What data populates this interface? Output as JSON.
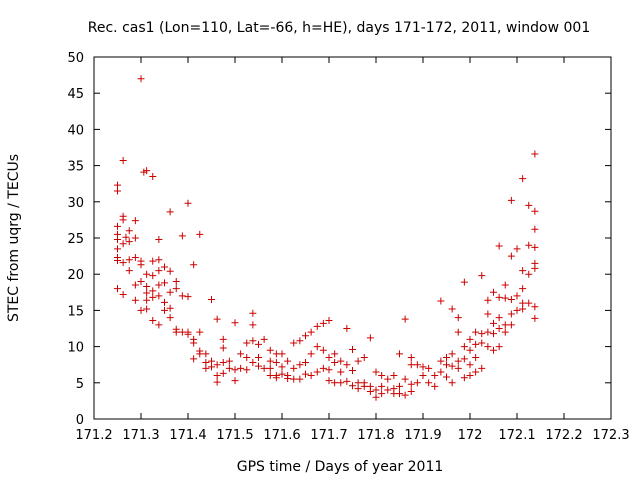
{
  "chart_data": {
    "type": "scatter",
    "title": "Rec. cas1 (Lon=110, Lat=-66, h=HE), days 171-172, 2011, window 001",
    "xlabel": "GPS time / Days of year 2011",
    "ylabel": "STEC from uqrg / TECUs",
    "xlim": [
      171.2,
      172.3
    ],
    "ylim": [
      0,
      50
    ],
    "xticks": [
      "171.2",
      "171.3",
      "171.4",
      "171.5",
      "171.6",
      "171.7",
      "171.8",
      "171.9",
      "172",
      "172.1",
      "172.2",
      "172.3"
    ],
    "yticks": [
      "0",
      "5",
      "10",
      "15",
      "20",
      "25",
      "30",
      "35",
      "40",
      "45",
      "50"
    ],
    "grid": false,
    "legend": "none",
    "marker": "+",
    "color": "#cc0000",
    "series": [
      {
        "points": [
          [
            171.25,
            32.3
          ],
          [
            171.25,
            31.5
          ],
          [
            171.25,
            26.6
          ],
          [
            171.25,
            25.5
          ],
          [
            171.25,
            24.8
          ],
          [
            171.25,
            23.5
          ],
          [
            171.25,
            22.3
          ],
          [
            171.25,
            21.9
          ],
          [
            171.25,
            18.0
          ],
          [
            171.262,
            35.7
          ],
          [
            171.262,
            28.0
          ],
          [
            171.262,
            27.5
          ],
          [
            171.262,
            24.2
          ],
          [
            171.262,
            21.6
          ],
          [
            171.262,
            17.2
          ],
          [
            171.268,
            25.1
          ],
          [
            171.275,
            26.0
          ],
          [
            171.275,
            24.5
          ],
          [
            171.275,
            22.0
          ],
          [
            171.275,
            20.5
          ],
          [
            171.288,
            27.4
          ],
          [
            171.288,
            25.0
          ],
          [
            171.288,
            22.3
          ],
          [
            171.288,
            18.5
          ],
          [
            171.288,
            16.4
          ],
          [
            171.3,
            47.0
          ],
          [
            171.3,
            21.8
          ],
          [
            171.3,
            21.3
          ],
          [
            171.3,
            19.0
          ],
          [
            171.3,
            15.0
          ],
          [
            171.306,
            34.1
          ],
          [
            171.312,
            34.3
          ],
          [
            171.312,
            20.0
          ],
          [
            171.312,
            18.3
          ],
          [
            171.312,
            17.4
          ],
          [
            171.312,
            16.4
          ],
          [
            171.312,
            15.2
          ],
          [
            171.325,
            33.5
          ],
          [
            171.325,
            21.8
          ],
          [
            171.325,
            19.8
          ],
          [
            171.325,
            17.7
          ],
          [
            171.325,
            16.8
          ],
          [
            171.325,
            13.6
          ],
          [
            171.338,
            24.8
          ],
          [
            171.338,
            22.0
          ],
          [
            171.338,
            20.5
          ],
          [
            171.338,
            18.5
          ],
          [
            171.338,
            17.0
          ],
          [
            171.338,
            13.0
          ],
          [
            171.35,
            21.0
          ],
          [
            171.35,
            18.8
          ],
          [
            171.35,
            16.1
          ],
          [
            171.35,
            15.0
          ],
          [
            171.362,
            28.6
          ],
          [
            171.362,
            20.4
          ],
          [
            171.362,
            17.5
          ],
          [
            171.362,
            15.3
          ],
          [
            171.362,
            14.0
          ],
          [
            171.375,
            19.0
          ],
          [
            171.375,
            18.0
          ],
          [
            171.375,
            12.4
          ],
          [
            171.375,
            12.0
          ],
          [
            171.388,
            25.3
          ],
          [
            171.388,
            17.0
          ],
          [
            171.388,
            12.0
          ],
          [
            171.4,
            29.8
          ],
          [
            171.4,
            16.9
          ],
          [
            171.4,
            12.0
          ],
          [
            171.4,
            11.7
          ],
          [
            171.412,
            21.3
          ],
          [
            171.412,
            11.0
          ],
          [
            171.412,
            10.5
          ],
          [
            171.412,
            8.3
          ],
          [
            171.425,
            25.5
          ],
          [
            171.425,
            12.0
          ],
          [
            171.425,
            9.4
          ],
          [
            171.425,
            9.0
          ],
          [
            171.438,
            9.0
          ],
          [
            171.438,
            7.8
          ],
          [
            171.438,
            7.0
          ],
          [
            171.45,
            16.5
          ],
          [
            171.45,
            8.0
          ],
          [
            171.45,
            7.2
          ],
          [
            171.462,
            13.8
          ],
          [
            171.462,
            7.5
          ],
          [
            171.462,
            6.0
          ],
          [
            171.462,
            5.1
          ],
          [
            171.475,
            11.0
          ],
          [
            171.475,
            9.8
          ],
          [
            171.475,
            7.8
          ],
          [
            171.475,
            6.3
          ],
          [
            171.488,
            8.0
          ],
          [
            171.488,
            7.0
          ],
          [
            171.5,
            13.3
          ],
          [
            171.5,
            6.8
          ],
          [
            171.5,
            5.3
          ],
          [
            171.512,
            9.0
          ],
          [
            171.512,
            7.0
          ],
          [
            171.525,
            10.5
          ],
          [
            171.525,
            8.5
          ],
          [
            171.525,
            6.8
          ],
          [
            171.538,
            14.6
          ],
          [
            171.538,
            13.0
          ],
          [
            171.538,
            10.8
          ],
          [
            171.538,
            7.8
          ],
          [
            171.55,
            10.3
          ],
          [
            171.55,
            8.5
          ],
          [
            171.55,
            7.3
          ],
          [
            171.562,
            11.0
          ],
          [
            171.562,
            7.0
          ],
          [
            171.575,
            9.5
          ],
          [
            171.575,
            8.0
          ],
          [
            171.575,
            7.0
          ],
          [
            171.575,
            6.0
          ],
          [
            171.588,
            9.0
          ],
          [
            171.588,
            7.8
          ],
          [
            171.588,
            6.0
          ],
          [
            171.588,
            5.7
          ],
          [
            171.6,
            9.0
          ],
          [
            171.6,
            7.2
          ],
          [
            171.6,
            6.2
          ],
          [
            171.612,
            8.0
          ],
          [
            171.612,
            6.0
          ],
          [
            171.612,
            5.6
          ],
          [
            171.625,
            10.5
          ],
          [
            171.625,
            7.0
          ],
          [
            171.625,
            5.5
          ],
          [
            171.638,
            10.8
          ],
          [
            171.638,
            7.5
          ],
          [
            171.638,
            5.5
          ],
          [
            171.65,
            11.5
          ],
          [
            171.65,
            7.8
          ],
          [
            171.65,
            6.2
          ],
          [
            171.662,
            12.0
          ],
          [
            171.662,
            9.0
          ],
          [
            171.662,
            6.0
          ],
          [
            171.675,
            12.8
          ],
          [
            171.675,
            10.0
          ],
          [
            171.675,
            6.5
          ],
          [
            171.688,
            13.2
          ],
          [
            171.688,
            9.5
          ],
          [
            171.688,
            7.0
          ],
          [
            171.7,
            13.6
          ],
          [
            171.7,
            8.5
          ],
          [
            171.7,
            6.8
          ],
          [
            171.7,
            5.3
          ],
          [
            171.712,
            9.0
          ],
          [
            171.712,
            7.8
          ],
          [
            171.712,
            5.0
          ],
          [
            171.725,
            8.0
          ],
          [
            171.725,
            6.5
          ],
          [
            171.725,
            5.0
          ],
          [
            171.738,
            12.5
          ],
          [
            171.738,
            7.5
          ],
          [
            171.738,
            5.2
          ],
          [
            171.75,
            9.6
          ],
          [
            171.75,
            6.7
          ],
          [
            171.75,
            4.6
          ],
          [
            171.762,
            8.0
          ],
          [
            171.762,
            5.0
          ],
          [
            171.762,
            4.2
          ],
          [
            171.775,
            8.5
          ],
          [
            171.775,
            5.0
          ],
          [
            171.775,
            4.5
          ],
          [
            171.788,
            11.2
          ],
          [
            171.788,
            4.5
          ],
          [
            171.788,
            3.8
          ],
          [
            171.8,
            6.5
          ],
          [
            171.8,
            4.0
          ],
          [
            171.8,
            3.0
          ],
          [
            171.812,
            6.0
          ],
          [
            171.812,
            4.5
          ],
          [
            171.812,
            3.5
          ],
          [
            171.825,
            5.5
          ],
          [
            171.825,
            4.0
          ],
          [
            171.838,
            6.0
          ],
          [
            171.838,
            4.2
          ],
          [
            171.838,
            3.5
          ],
          [
            171.85,
            9.0
          ],
          [
            171.85,
            4.5
          ],
          [
            171.85,
            3.5
          ],
          [
            171.862,
            13.8
          ],
          [
            171.862,
            5.5
          ],
          [
            171.862,
            3.3
          ],
          [
            171.875,
            8.5
          ],
          [
            171.875,
            7.5
          ],
          [
            171.875,
            4.8
          ],
          [
            171.875,
            3.8
          ],
          [
            171.888,
            7.5
          ],
          [
            171.888,
            5.0
          ],
          [
            171.9,
            7.2
          ],
          [
            171.9,
            6.0
          ],
          [
            171.912,
            7.0
          ],
          [
            171.912,
            5.0
          ],
          [
            171.925,
            6.0
          ],
          [
            171.925,
            4.5
          ],
          [
            171.938,
            16.3
          ],
          [
            171.938,
            8.0
          ],
          [
            171.938,
            6.5
          ],
          [
            171.95,
            8.5
          ],
          [
            171.95,
            7.5
          ],
          [
            171.95,
            5.8
          ],
          [
            171.962,
            15.2
          ],
          [
            171.962,
            9.0
          ],
          [
            171.962,
            7.3
          ],
          [
            171.962,
            5.0
          ],
          [
            171.975,
            14.0
          ],
          [
            171.975,
            12.0
          ],
          [
            171.975,
            8.0
          ],
          [
            171.975,
            7.0
          ],
          [
            171.988,
            18.9
          ],
          [
            171.988,
            10.0
          ],
          [
            171.988,
            8.3
          ],
          [
            171.988,
            5.7
          ],
          [
            172.0,
            11.0
          ],
          [
            172.0,
            9.5
          ],
          [
            172.0,
            7.5
          ],
          [
            172.0,
            6.0
          ],
          [
            172.012,
            12.0
          ],
          [
            172.012,
            10.3
          ],
          [
            172.012,
            8.5
          ],
          [
            172.012,
            6.5
          ],
          [
            172.025,
            19.8
          ],
          [
            172.025,
            11.8
          ],
          [
            172.025,
            10.5
          ],
          [
            172.025,
            7.0
          ],
          [
            172.038,
            16.4
          ],
          [
            172.038,
            14.5
          ],
          [
            172.038,
            12.0
          ],
          [
            172.038,
            10.0
          ],
          [
            172.05,
            17.5
          ],
          [
            172.05,
            13.2
          ],
          [
            172.05,
            11.8
          ],
          [
            172.05,
            9.5
          ],
          [
            172.062,
            23.9
          ],
          [
            172.062,
            16.8
          ],
          [
            172.062,
            14.0
          ],
          [
            172.062,
            12.5
          ],
          [
            172.062,
            10.0
          ],
          [
            172.075,
            18.5
          ],
          [
            172.075,
            16.7
          ],
          [
            172.075,
            13.0
          ],
          [
            172.075,
            12.0
          ],
          [
            172.088,
            30.2
          ],
          [
            172.088,
            22.5
          ],
          [
            172.088,
            16.5
          ],
          [
            172.088,
            14.5
          ],
          [
            172.088,
            13.0
          ],
          [
            172.1,
            23.5
          ],
          [
            172.1,
            17.0
          ],
          [
            172.1,
            15.0
          ],
          [
            172.112,
            33.2
          ],
          [
            172.112,
            20.5
          ],
          [
            172.112,
            18.0
          ],
          [
            172.112,
            16.0
          ],
          [
            172.112,
            15.2
          ],
          [
            172.125,
            29.5
          ],
          [
            172.125,
            24.0
          ],
          [
            172.125,
            20.0
          ],
          [
            172.125,
            16.0
          ],
          [
            172.138,
            36.6
          ],
          [
            172.138,
            28.7
          ],
          [
            172.138,
            26.2
          ],
          [
            172.138,
            23.7
          ],
          [
            172.138,
            21.5
          ],
          [
            172.138,
            20.8
          ],
          [
            172.138,
            15.5
          ],
          [
            172.138,
            13.9
          ]
        ]
      }
    ]
  }
}
